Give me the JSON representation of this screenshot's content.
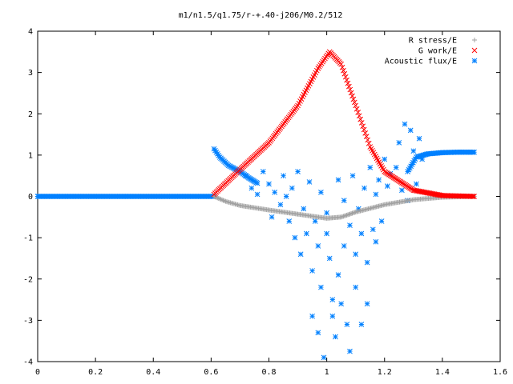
{
  "chart_data": {
    "type": "scatter",
    "title": "m1/n1.5/q1.75/r-+.40-j206/M0.2/512",
    "xlabel": "",
    "ylabel": "",
    "xlim": [
      0,
      1.6
    ],
    "ylim": [
      -4,
      4
    ],
    "x_ticks": [
      "0",
      "0.2",
      "0.4",
      "0.6",
      "0.8",
      "1",
      "1.2",
      "1.4",
      "1.6"
    ],
    "y_ticks": [
      "4",
      "3",
      "2",
      "1",
      "0",
      "-1",
      "-2",
      "-3",
      "-4"
    ],
    "grid": false,
    "legend_position": "top-right",
    "series": [
      {
        "name": "R stress/E",
        "marker": "+",
        "color": "#a0a0a0",
        "curve": [
          [
            0.61,
            0.0
          ],
          [
            0.65,
            -0.12
          ],
          [
            0.7,
            -0.22
          ],
          [
            0.8,
            -0.33
          ],
          [
            0.9,
            -0.43
          ],
          [
            1.0,
            -0.53
          ],
          [
            1.05,
            -0.5
          ],
          [
            1.1,
            -0.38
          ],
          [
            1.2,
            -0.2
          ],
          [
            1.3,
            -0.08
          ],
          [
            1.4,
            -0.02
          ],
          [
            1.51,
            0.0
          ]
        ]
      },
      {
        "name": "G work/E",
        "marker": "x",
        "color": "#ff0000",
        "curve": [
          [
            0.61,
            0.05
          ],
          [
            0.7,
            0.65
          ],
          [
            0.8,
            1.3
          ],
          [
            0.9,
            2.2
          ],
          [
            0.97,
            3.1
          ],
          [
            1.01,
            3.5
          ],
          [
            1.05,
            3.2
          ],
          [
            1.1,
            2.2
          ],
          [
            1.15,
            1.2
          ],
          [
            1.2,
            0.6
          ],
          [
            1.3,
            0.15
          ],
          [
            1.4,
            0.02
          ],
          [
            1.51,
            0.0
          ]
        ]
      },
      {
        "name": "Acoustic flux/E",
        "marker": "*",
        "color": "#0080ff",
        "baseline": {
          "x_range": [
            0.0,
            0.61
          ],
          "y": 0.0
        },
        "branch_left": [
          [
            0.61,
            1.15
          ],
          [
            0.63,
            0.95
          ],
          [
            0.66,
            0.75
          ],
          [
            0.7,
            0.6
          ],
          [
            0.73,
            0.45
          ],
          [
            0.76,
            0.32
          ]
        ],
        "branch_right": [
          [
            1.28,
            0.6
          ],
          [
            1.31,
            0.95
          ],
          [
            1.35,
            1.03
          ],
          [
            1.4,
            1.06
          ],
          [
            1.45,
            1.07
          ],
          [
            1.51,
            1.07
          ]
        ],
        "scatter": [
          [
            0.72,
            0.5
          ],
          [
            0.74,
            0.2
          ],
          [
            0.76,
            0.05
          ],
          [
            0.78,
            0.6
          ],
          [
            0.8,
            0.3
          ],
          [
            0.81,
            -0.5
          ],
          [
            0.82,
            0.1
          ],
          [
            0.84,
            -0.2
          ],
          [
            0.85,
            0.5
          ],
          [
            0.86,
            0.0
          ],
          [
            0.87,
            -0.6
          ],
          [
            0.88,
            0.2
          ],
          [
            0.89,
            -1.0
          ],
          [
            0.9,
            0.6
          ],
          [
            0.91,
            -1.4
          ],
          [
            0.92,
            -0.3
          ],
          [
            0.93,
            -0.9
          ],
          [
            0.94,
            0.35
          ],
          [
            0.95,
            -1.8
          ],
          [
            0.95,
            -2.9
          ],
          [
            0.96,
            -0.6
          ],
          [
            0.97,
            -1.2
          ],
          [
            0.97,
            -3.3
          ],
          [
            0.98,
            -2.2
          ],
          [
            0.98,
            0.1
          ],
          [
            0.99,
            -3.9
          ],
          [
            1.0,
            -0.4
          ],
          [
            1.0,
            -0.9
          ],
          [
            1.01,
            -1.5
          ],
          [
            1.02,
            -2.5
          ],
          [
            1.02,
            -2.9
          ],
          [
            1.03,
            -3.4
          ],
          [
            1.04,
            0.4
          ],
          [
            1.04,
            -1.9
          ],
          [
            1.05,
            -2.6
          ],
          [
            1.06,
            -0.1
          ],
          [
            1.06,
            -1.2
          ],
          [
            1.07,
            -3.1
          ],
          [
            1.08,
            -0.7
          ],
          [
            1.08,
            -3.75
          ],
          [
            1.09,
            0.5
          ],
          [
            1.1,
            -1.4
          ],
          [
            1.1,
            -2.2
          ],
          [
            1.11,
            -0.3
          ],
          [
            1.12,
            -3.1
          ],
          [
            1.12,
            -0.9
          ],
          [
            1.13,
            0.2
          ],
          [
            1.14,
            -1.6
          ],
          [
            1.14,
            -2.6
          ],
          [
            1.15,
            0.7
          ],
          [
            1.16,
            -0.8
          ],
          [
            1.17,
            0.05
          ],
          [
            1.17,
            -1.1
          ],
          [
            1.18,
            0.4
          ],
          [
            1.19,
            -0.6
          ],
          [
            1.2,
            0.9
          ],
          [
            1.21,
            0.25
          ],
          [
            1.22,
            0.55
          ],
          [
            1.24,
            0.7
          ],
          [
            1.25,
            1.3
          ],
          [
            1.26,
            0.15
          ],
          [
            1.27,
            1.75
          ],
          [
            1.28,
            -0.1
          ],
          [
            1.29,
            1.6
          ],
          [
            1.3,
            1.1
          ],
          [
            1.31,
            0.3
          ],
          [
            1.32,
            1.4
          ],
          [
            1.33,
            0.9
          ]
        ]
      }
    ]
  }
}
